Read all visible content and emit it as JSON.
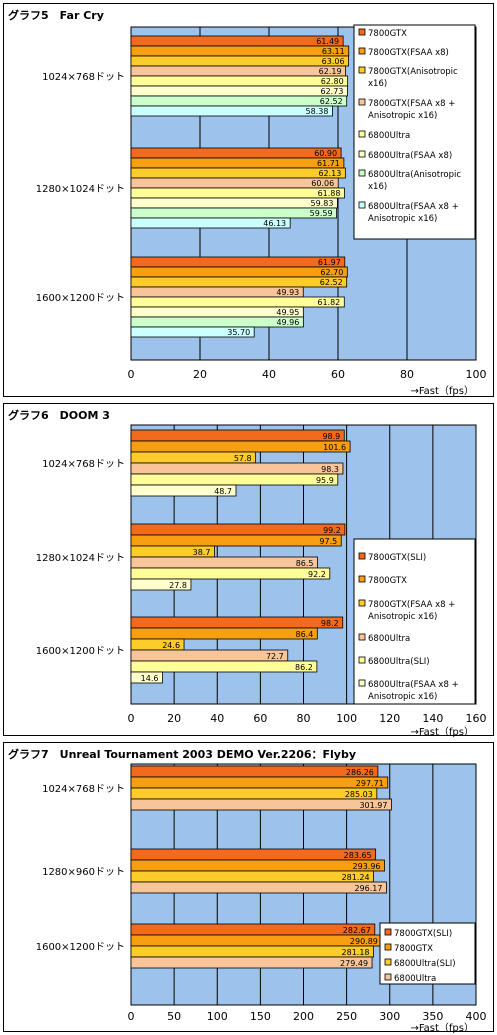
{
  "colors": {
    "plot_bg": "#9dc3ec",
    "bar_border": "#000000",
    "gridline": "#000000"
  },
  "unit_label": "→Fast（fps）",
  "chart_data": [
    {
      "type": "bar",
      "orientation": "horizontal",
      "title": "グラフ5　Far Cry",
      "categories": [
        "1024×768ドット",
        "1280×1024ドット",
        "1600×1200ドット"
      ],
      "xlim": [
        0,
        100
      ],
      "xticks": [
        0,
        20,
        40,
        60,
        80,
        100
      ],
      "grid": true,
      "legend_position": "right-top",
      "series": [
        {
          "name": "7800GTX",
          "color": "#f36a1c",
          "values": [
            61.49,
            60.9,
            61.97
          ]
        },
        {
          "name": "7800GTX(FSAA x8)",
          "color": "#f79e12",
          "values": [
            63.11,
            61.71,
            62.7
          ]
        },
        {
          "name": "7800GTX(Anisotropic x16)",
          "color": "#fccc2a",
          "values": [
            63.06,
            62.13,
            62.52
          ]
        },
        {
          "name": "7800GTX(FSAA x8 + Anisotropic x16)",
          "color": "#f8c49a",
          "values": [
            62.19,
            60.06,
            49.93
          ]
        },
        {
          "name": "6800Ultra",
          "color": "#ffff99",
          "values": [
            62.8,
            61.88,
            61.82
          ]
        },
        {
          "name": "6800Ultra(FSAA x8)",
          "color": "#ffffcc",
          "values": [
            62.73,
            59.83,
            49.95
          ]
        },
        {
          "name": "6800Ultra(Anisotropic x16)",
          "color": "#ccffcc",
          "values": [
            62.52,
            59.59,
            49.96
          ]
        },
        {
          "name": "6800Ultra(FSAA x8 + Anisotropic x16)",
          "color": "#ccffff",
          "values": [
            58.38,
            46.13,
            35.7
          ]
        }
      ]
    },
    {
      "type": "bar",
      "orientation": "horizontal",
      "title": "グラフ6　DOOM 3",
      "categories": [
        "1024×768ドット",
        "1280×1024ドット",
        "1600×1200ドット"
      ],
      "xlim": [
        0,
        160
      ],
      "xticks": [
        0,
        20,
        40,
        60,
        80,
        100,
        120,
        140,
        160
      ],
      "grid": true,
      "legend_position": "right-bottom",
      "series": [
        {
          "name": "7800GTX(SLI)",
          "color": "#f36a1c",
          "values": [
            98.9,
            99.2,
            98.2
          ]
        },
        {
          "name": "7800GTX",
          "color": "#f79e12",
          "values": [
            101.6,
            97.5,
            86.4
          ]
        },
        {
          "name": "7800GTX(FSAA x8 + Anisotropic x16)",
          "color": "#fccc2a",
          "values": [
            57.8,
            38.7,
            24.6
          ]
        },
        {
          "name": "6800Ultra",
          "color": "#f8c49a",
          "values": [
            98.3,
            86.5,
            72.7
          ]
        },
        {
          "name": "6800Ultra(SLI)",
          "color": "#ffff99",
          "values": [
            95.9,
            92.2,
            86.2
          ]
        },
        {
          "name": "6800Ultra(FSAA x8 + Anisotropic x16)",
          "color": "#ffffcc",
          "values": [
            48.7,
            27.8,
            14.6
          ]
        }
      ]
    },
    {
      "type": "bar",
      "orientation": "horizontal",
      "title": "グラフ7　Unreal Tournament 2003 DEMO Ver.2206：Flyby",
      "categories": [
        "1024×768ドット",
        "1280×960ドット",
        "1600×1200ドット"
      ],
      "xlim": [
        0,
        400
      ],
      "xticks": [
        0,
        50,
        100,
        150,
        200,
        250,
        300,
        350,
        400
      ],
      "grid": true,
      "legend_position": "right-bottom",
      "series": [
        {
          "name": "7800GTX(SLI)",
          "color": "#f36a1c",
          "values": [
            286.26,
            283.65,
            282.67
          ]
        },
        {
          "name": "7800GTX",
          "color": "#f79e12",
          "values": [
            297.71,
            293.96,
            290.89
          ]
        },
        {
          "name": "6800Ultra(SLI)",
          "color": "#fccc2a",
          "values": [
            285.03,
            281.24,
            281.18
          ]
        },
        {
          "name": "6800Ultra",
          "color": "#f8c49a",
          "values": [
            301.97,
            296.17,
            279.49
          ]
        }
      ]
    }
  ],
  "value_labels": [
    [
      [
        "61.49",
        "63.11",
        "63.06",
        "62.19",
        "62.80",
        "62.73",
        "62.52",
        "58.38"
      ],
      [
        "60.90",
        "61.71",
        "62.13",
        "60.06",
        "61.88",
        "59.83",
        "59.59",
        "46.13"
      ],
      [
        "61.97",
        "62.70",
        "62.52",
        "49.93",
        "61.82",
        "49.95",
        "49.96",
        "35.70"
      ]
    ],
    [
      [
        "98.9",
        "101.6",
        "57.8",
        "98.3",
        "95.9",
        "48.7"
      ],
      [
        "99.2",
        "97.5",
        "38.7",
        "86.5",
        "92.2",
        "27.8"
      ],
      [
        "98.2",
        "86.4",
        "24.6",
        "72.7",
        "86.2",
        "14.6"
      ]
    ],
    [
      [
        "286.26",
        "297.71",
        "285.03",
        "301.97"
      ],
      [
        "283.65",
        "293.96",
        "281.24",
        "296.17"
      ],
      [
        "282.67",
        "290.89",
        "281.18",
        "279.49"
      ]
    ]
  ],
  "legend_labels": [
    [
      [
        "7800GTX"
      ],
      [
        "7800GTX(FSAA x8)"
      ],
      [
        "7800GTX(Anisotropic",
        "x16)"
      ],
      [
        "7800GTX(FSAA x8 +",
        "Anisotropic x16)"
      ],
      [
        "6800Ultra"
      ],
      [
        "6800Ultra(FSAA x8)"
      ],
      [
        "6800Ultra(Anisotropic",
        "x16)"
      ],
      [
        "6800Ultra(FSAA x8 +",
        "Anisotropic x16)"
      ]
    ],
    [
      [
        "7800GTX(SLI)"
      ],
      [
        "7800GTX"
      ],
      [
        "7800GTX(FSAA x8 +",
        "Anisotropic x16)"
      ],
      [
        "6800Ultra"
      ],
      [
        "6800Ultra(SLI)"
      ],
      [
        "6800Ultra(FSAA x8 +",
        "Anisotropic x16)"
      ]
    ],
    [
      [
        "7800GTX(SLI)"
      ],
      [
        "7800GTX"
      ],
      [
        "6800Ultra(SLI)"
      ],
      [
        "6800Ultra"
      ]
    ]
  ]
}
